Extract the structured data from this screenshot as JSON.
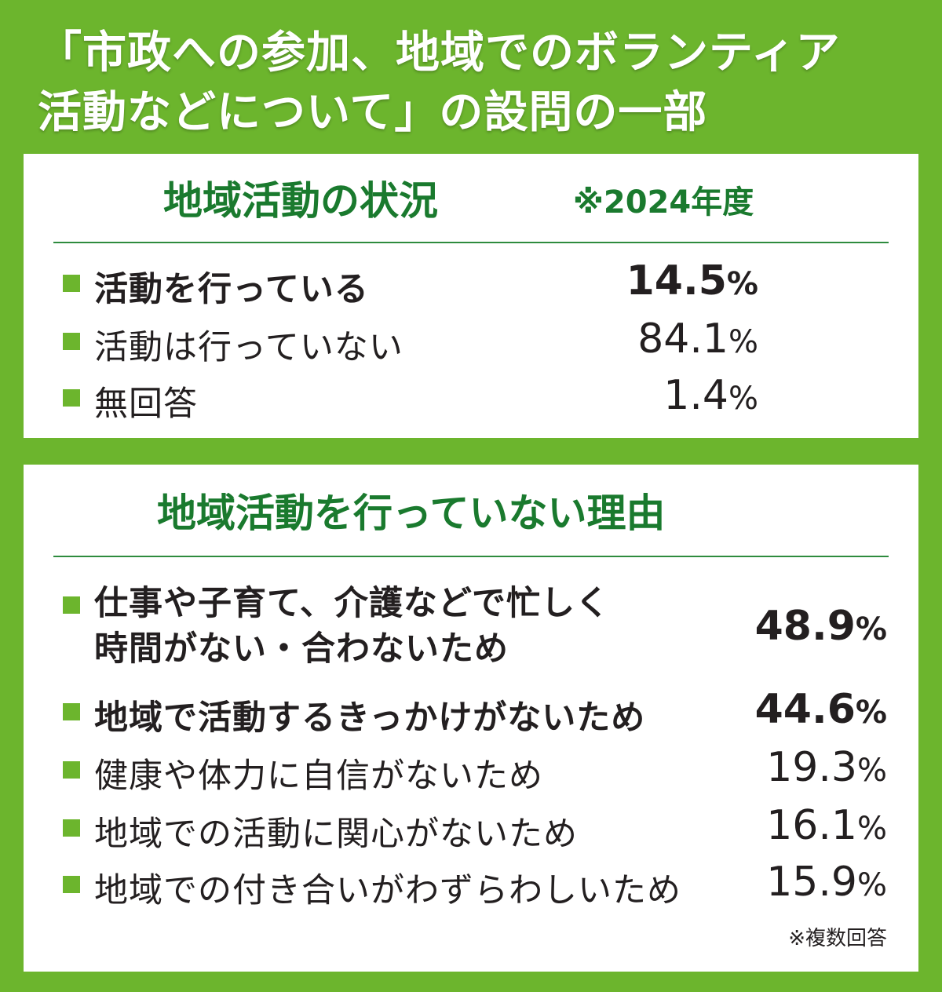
{
  "headline": {
    "line1": "「市政への参加、地域でのボランティア",
    "line2": "活動などについて」の設問の一部"
  },
  "status_panel": {
    "title": "地域活動の状況",
    "note": "※2024年度",
    "rows": [
      {
        "label": "活動を行っている",
        "value": "14.5",
        "unit": "%"
      },
      {
        "label": "活動は行っていない",
        "value": "84.1",
        "unit": "%"
      },
      {
        "label": "無回答",
        "value": "1.4",
        "unit": "%"
      }
    ]
  },
  "reasons_panel": {
    "title": "地域活動を行っていない理由",
    "rows": [
      {
        "label_line1": "仕事や子育て、介護などで忙しく",
        "label_line2": "時間がない・合わないため",
        "value": "48.9",
        "unit": "%"
      },
      {
        "label": "地域で活動するきっかけがないため",
        "value": "44.6",
        "unit": "%"
      },
      {
        "label": "健康や体力に自信がないため",
        "value": "19.3",
        "unit": "%"
      },
      {
        "label": "地域での活動に関心がないため",
        "value": "16.1",
        "unit": "%"
      },
      {
        "label": "地域での付き合いがわずらわしいため",
        "value": "15.9",
        "unit": "%"
      }
    ],
    "footnote": "※複数回答"
  },
  "colors": {
    "background": "#6cb52d",
    "title_green": "#1a7a2e",
    "bullet": "#6cb52d",
    "text": "#231f20"
  }
}
